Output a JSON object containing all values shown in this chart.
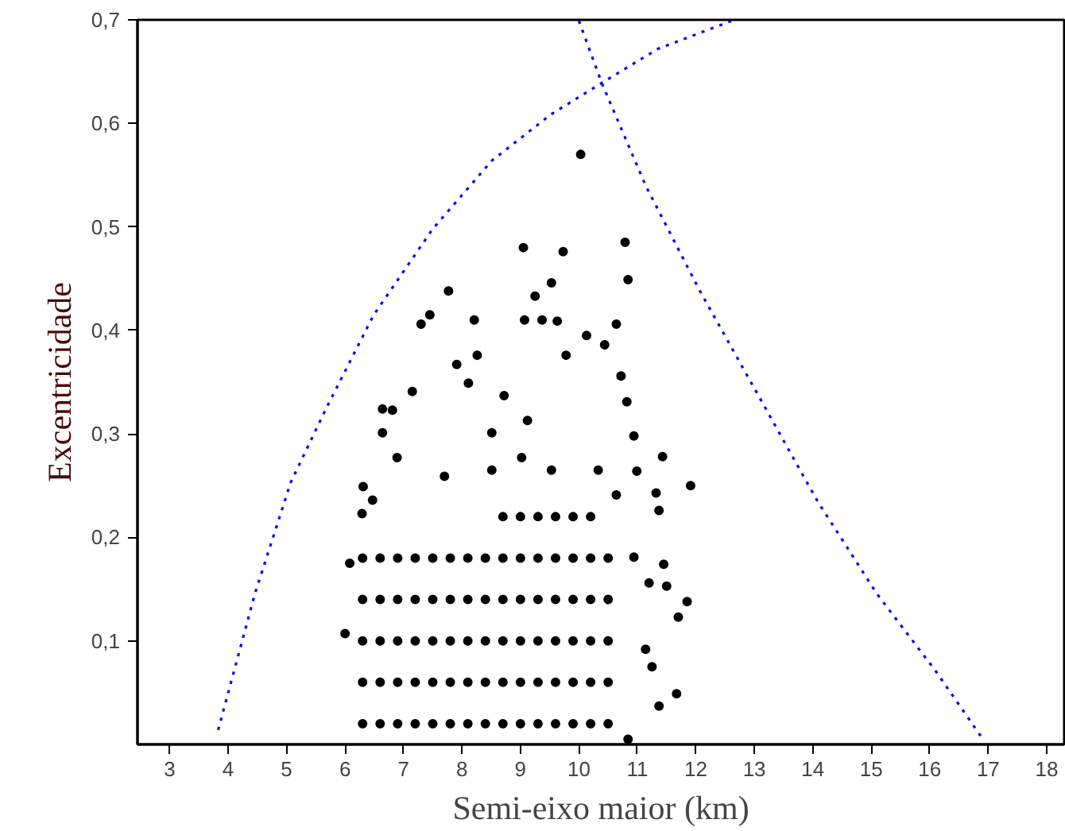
{
  "chart_data": {
    "type": "scatter",
    "xlabel": "Semi-eixo maior (km)",
    "ylabel": "Excentricidade",
    "xlim": [
      2.45,
      18.3
    ],
    "ylim": [
      0,
      0.7
    ],
    "xticks": [
      3,
      4,
      5,
      6,
      7,
      8,
      9,
      10,
      11,
      12,
      13,
      14,
      15,
      16,
      17,
      18
    ],
    "yticks": [
      {
        "value": 0.1,
        "label": "0,1"
      },
      {
        "value": 0.2,
        "label": "0,2"
      },
      {
        "value": 0.3,
        "label": "0,3"
      },
      {
        "value": 0.4,
        "label": "0,4"
      },
      {
        "value": 0.5,
        "label": "0,5"
      },
      {
        "value": 0.6,
        "label": "0,6"
      },
      {
        "value": 0.7,
        "label": "0,7"
      }
    ],
    "grid": false,
    "marker": "circle",
    "series": [
      {
        "color": "#000000",
        "x": [
          6.3,
          6.6,
          6.9,
          7.2,
          7.5,
          7.8,
          8.1,
          8.4,
          8.7,
          9.0,
          9.3,
          9.6,
          9.9,
          10.2,
          10.5,
          6.3,
          6.6,
          6.9,
          7.2,
          7.5,
          7.8,
          8.1,
          8.4,
          8.7,
          9.0,
          9.3,
          9.6,
          9.9,
          10.2,
          10.5,
          6.3,
          6.6,
          6.9,
          7.2,
          7.5,
          7.8,
          8.1,
          8.4,
          8.7,
          9.0,
          9.3,
          9.6,
          9.9,
          10.2,
          10.5,
          6.3,
          6.6,
          6.9,
          7.2,
          7.5,
          7.8,
          8.1,
          8.4,
          8.7,
          9.0,
          9.3,
          9.6,
          9.9,
          10.2,
          10.5,
          6.3,
          6.6,
          6.9,
          7.2,
          7.5,
          7.8,
          8.1,
          8.4,
          8.7,
          9.0,
          9.3,
          9.6,
          9.9,
          10.2,
          10.5,
          8.7,
          9.0,
          9.3,
          9.6,
          9.9,
          10.2,
          6.08,
          6.29,
          6.89,
          7.7,
          8.51,
          9.02,
          9.53,
          10.33,
          10.64,
          10.94,
          11.14,
          10.84,
          10.03,
          9.05,
          9.73,
          10.79,
          10.84,
          7.77,
          9.53,
          9.25,
          7.45,
          7.3,
          8.21,
          9.07,
          9.37,
          9.63,
          10.13,
          10.44,
          10.64,
          9.78,
          8.26,
          7.91,
          7.15,
          6.64,
          6.81,
          6.64,
          10.72,
          10.82,
          10.94,
          11.43,
          11.91,
          10.99,
          11.32,
          11.37,
          11.45,
          11.2,
          11.5,
          11.85,
          11.7,
          11.25,
          11.67,
          11.37,
          6.0,
          6.31,
          6.47,
          8.72,
          8.11,
          9.12,
          8.51
        ],
        "values": [
          0.02,
          0.02,
          0.02,
          0.02,
          0.02,
          0.02,
          0.02,
          0.02,
          0.02,
          0.02,
          0.02,
          0.02,
          0.02,
          0.02,
          0.02,
          0.06,
          0.06,
          0.06,
          0.06,
          0.06,
          0.06,
          0.06,
          0.06,
          0.06,
          0.06,
          0.06,
          0.06,
          0.06,
          0.06,
          0.06,
          0.1,
          0.1,
          0.1,
          0.1,
          0.1,
          0.1,
          0.1,
          0.1,
          0.1,
          0.1,
          0.1,
          0.1,
          0.1,
          0.1,
          0.1,
          0.14,
          0.14,
          0.14,
          0.14,
          0.14,
          0.14,
          0.14,
          0.14,
          0.14,
          0.14,
          0.14,
          0.14,
          0.14,
          0.14,
          0.14,
          0.18,
          0.18,
          0.18,
          0.18,
          0.18,
          0.18,
          0.18,
          0.18,
          0.18,
          0.18,
          0.18,
          0.18,
          0.18,
          0.18,
          0.18,
          0.22,
          0.22,
          0.22,
          0.22,
          0.22,
          0.22,
          0.175,
          0.223,
          0.277,
          0.259,
          0.265,
          0.277,
          0.265,
          0.265,
          0.241,
          0.181,
          0.092,
          0.005,
          0.57,
          0.48,
          0.476,
          0.485,
          0.449,
          0.438,
          0.446,
          0.433,
          0.415,
          0.406,
          0.41,
          0.41,
          0.41,
          0.409,
          0.395,
          0.386,
          0.406,
          0.376,
          0.376,
          0.367,
          0.341,
          0.324,
          0.323,
          0.301,
          0.356,
          0.331,
          0.298,
          0.278,
          0.25,
          0.264,
          0.243,
          0.226,
          0.174,
          0.156,
          0.153,
          0.138,
          0.123,
          0.075,
          0.049,
          0.037,
          0.107,
          0.249,
          0.236,
          0.337,
          0.349,
          0.313,
          0.301
        ]
      },
      {
        "type": "line",
        "line_style": "dotted",
        "marker": "none",
        "color": "#0000ff",
        "x": [
          3.83,
          4.46,
          5.07,
          5.68,
          6.49,
          7.5,
          8.51,
          9.53,
          10.39,
          11.35,
          12.61
        ],
        "values": [
          0.014,
          0.146,
          0.253,
          0.325,
          0.415,
          0.498,
          0.564,
          0.609,
          0.639,
          0.672,
          0.699
        ]
      },
      {
        "type": "line",
        "line_style": "dotted",
        "marker": "none",
        "color": "#0000ff",
        "x": [
          10.0,
          10.39,
          11.14,
          12.06,
          13.07,
          14.08,
          15.09,
          16.1,
          16.91
        ],
        "values": [
          0.699,
          0.639,
          0.54,
          0.439,
          0.337,
          0.235,
          0.146,
          0.071,
          0.005
        ]
      }
    ]
  }
}
